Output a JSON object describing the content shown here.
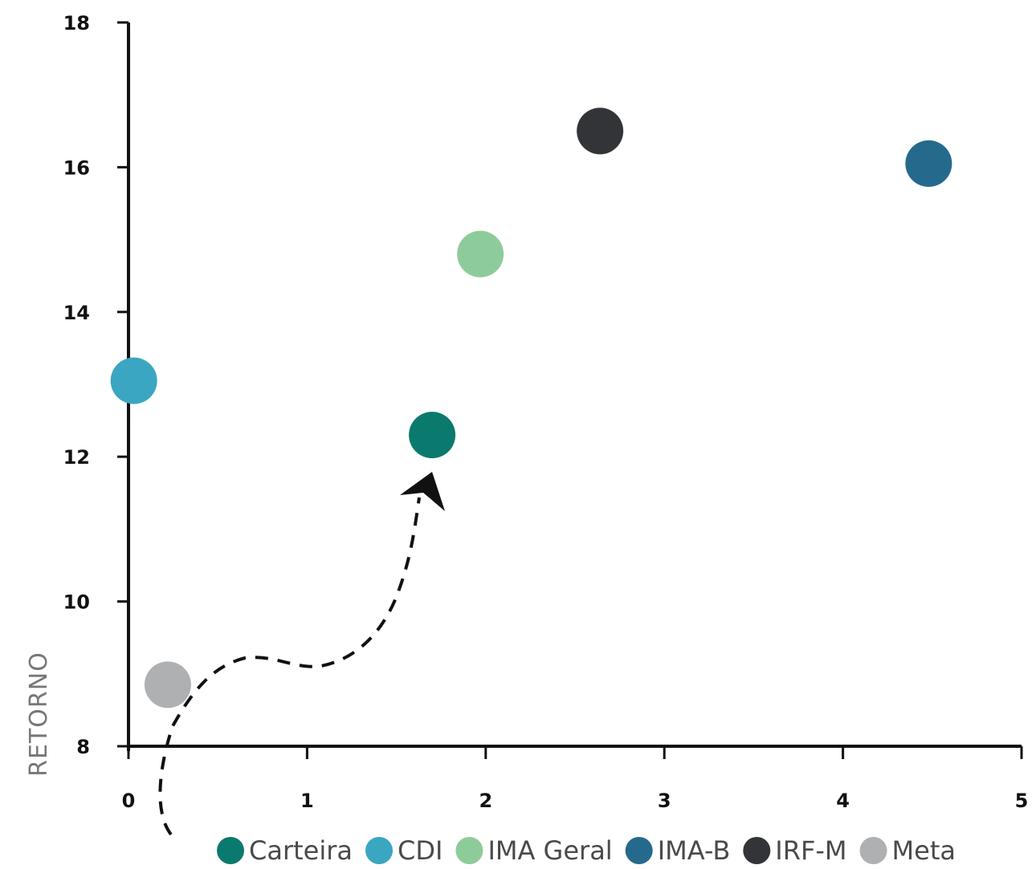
{
  "chart_data": {
    "type": "scatter",
    "xlabel": "",
    "ylabel": "RETORNO",
    "xlim": [
      0,
      5
    ],
    "ylim": [
      8,
      18
    ],
    "xticks": [
      "0",
      "1",
      "2",
      "3",
      "4",
      "5"
    ],
    "yticks": [
      "8",
      "10",
      "12",
      "14",
      "16",
      "18"
    ],
    "grid": false,
    "legend_position": "bottom",
    "series": [
      {
        "name": "Carteira",
        "color": "#0b7a6e",
        "points": [
          {
            "x": 1.7,
            "y": 12.3
          }
        ]
      },
      {
        "name": "CDI",
        "color": "#3aa6c2",
        "points": [
          {
            "x": 0.03,
            "y": 13.05
          }
        ]
      },
      {
        "name": "IMA Geral",
        "color": "#8ecb9a",
        "points": [
          {
            "x": 1.97,
            "y": 14.8
          }
        ]
      },
      {
        "name": "IMA-B",
        "color": "#256a8c",
        "points": [
          {
            "x": 4.48,
            "y": 16.05
          }
        ]
      },
      {
        "name": "IRF-M",
        "color": "#333438",
        "points": [
          {
            "x": 2.64,
            "y": 16.5
          }
        ]
      },
      {
        "name": "Meta",
        "color": "#aeb0b2",
        "points": [
          {
            "x": 0.22,
            "y": 8.85
          }
        ]
      }
    ],
    "annotations": [
      {
        "type": "dashed-arrow",
        "from_series": "Meta",
        "to_series": "Carteira"
      }
    ]
  }
}
